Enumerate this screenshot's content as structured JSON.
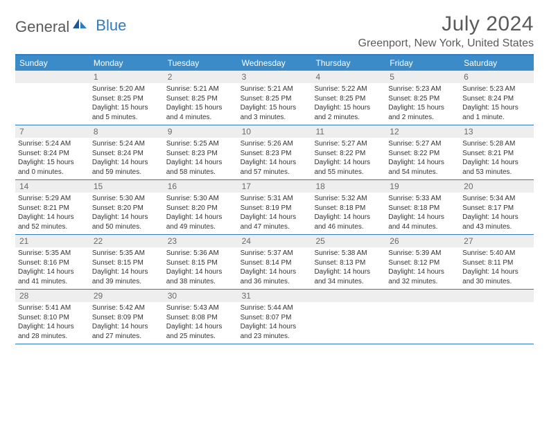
{
  "logo": {
    "part1": "General",
    "part2": "Blue"
  },
  "title": "July 2024",
  "location": "Greenport, New York, United States",
  "weekdays": [
    "Sunday",
    "Monday",
    "Tuesday",
    "Wednesday",
    "Thursday",
    "Friday",
    "Saturday"
  ],
  "colors": {
    "header_bar": "#3b8bc9",
    "border": "#2f7bbf",
    "daynum_bg": "#eeeeee",
    "text": "#333333",
    "muted": "#5a5a5a"
  },
  "weeks": [
    [
      {
        "num": "",
        "lines": []
      },
      {
        "num": "1",
        "lines": [
          "Sunrise: 5:20 AM",
          "Sunset: 8:25 PM",
          "Daylight: 15 hours",
          "and 5 minutes."
        ]
      },
      {
        "num": "2",
        "lines": [
          "Sunrise: 5:21 AM",
          "Sunset: 8:25 PM",
          "Daylight: 15 hours",
          "and 4 minutes."
        ]
      },
      {
        "num": "3",
        "lines": [
          "Sunrise: 5:21 AM",
          "Sunset: 8:25 PM",
          "Daylight: 15 hours",
          "and 3 minutes."
        ]
      },
      {
        "num": "4",
        "lines": [
          "Sunrise: 5:22 AM",
          "Sunset: 8:25 PM",
          "Daylight: 15 hours",
          "and 2 minutes."
        ]
      },
      {
        "num": "5",
        "lines": [
          "Sunrise: 5:23 AM",
          "Sunset: 8:25 PM",
          "Daylight: 15 hours",
          "and 2 minutes."
        ]
      },
      {
        "num": "6",
        "lines": [
          "Sunrise: 5:23 AM",
          "Sunset: 8:24 PM",
          "Daylight: 15 hours",
          "and 1 minute."
        ]
      }
    ],
    [
      {
        "num": "7",
        "lines": [
          "Sunrise: 5:24 AM",
          "Sunset: 8:24 PM",
          "Daylight: 15 hours",
          "and 0 minutes."
        ]
      },
      {
        "num": "8",
        "lines": [
          "Sunrise: 5:24 AM",
          "Sunset: 8:24 PM",
          "Daylight: 14 hours",
          "and 59 minutes."
        ]
      },
      {
        "num": "9",
        "lines": [
          "Sunrise: 5:25 AM",
          "Sunset: 8:23 PM",
          "Daylight: 14 hours",
          "and 58 minutes."
        ]
      },
      {
        "num": "10",
        "lines": [
          "Sunrise: 5:26 AM",
          "Sunset: 8:23 PM",
          "Daylight: 14 hours",
          "and 57 minutes."
        ]
      },
      {
        "num": "11",
        "lines": [
          "Sunrise: 5:27 AM",
          "Sunset: 8:22 PM",
          "Daylight: 14 hours",
          "and 55 minutes."
        ]
      },
      {
        "num": "12",
        "lines": [
          "Sunrise: 5:27 AM",
          "Sunset: 8:22 PM",
          "Daylight: 14 hours",
          "and 54 minutes."
        ]
      },
      {
        "num": "13",
        "lines": [
          "Sunrise: 5:28 AM",
          "Sunset: 8:21 PM",
          "Daylight: 14 hours",
          "and 53 minutes."
        ]
      }
    ],
    [
      {
        "num": "14",
        "lines": [
          "Sunrise: 5:29 AM",
          "Sunset: 8:21 PM",
          "Daylight: 14 hours",
          "and 52 minutes."
        ]
      },
      {
        "num": "15",
        "lines": [
          "Sunrise: 5:30 AM",
          "Sunset: 8:20 PM",
          "Daylight: 14 hours",
          "and 50 minutes."
        ]
      },
      {
        "num": "16",
        "lines": [
          "Sunrise: 5:30 AM",
          "Sunset: 8:20 PM",
          "Daylight: 14 hours",
          "and 49 minutes."
        ]
      },
      {
        "num": "17",
        "lines": [
          "Sunrise: 5:31 AM",
          "Sunset: 8:19 PM",
          "Daylight: 14 hours",
          "and 47 minutes."
        ]
      },
      {
        "num": "18",
        "lines": [
          "Sunrise: 5:32 AM",
          "Sunset: 8:18 PM",
          "Daylight: 14 hours",
          "and 46 minutes."
        ]
      },
      {
        "num": "19",
        "lines": [
          "Sunrise: 5:33 AM",
          "Sunset: 8:18 PM",
          "Daylight: 14 hours",
          "and 44 minutes."
        ]
      },
      {
        "num": "20",
        "lines": [
          "Sunrise: 5:34 AM",
          "Sunset: 8:17 PM",
          "Daylight: 14 hours",
          "and 43 minutes."
        ]
      }
    ],
    [
      {
        "num": "21",
        "lines": [
          "Sunrise: 5:35 AM",
          "Sunset: 8:16 PM",
          "Daylight: 14 hours",
          "and 41 minutes."
        ]
      },
      {
        "num": "22",
        "lines": [
          "Sunrise: 5:35 AM",
          "Sunset: 8:15 PM",
          "Daylight: 14 hours",
          "and 39 minutes."
        ]
      },
      {
        "num": "23",
        "lines": [
          "Sunrise: 5:36 AM",
          "Sunset: 8:15 PM",
          "Daylight: 14 hours",
          "and 38 minutes."
        ]
      },
      {
        "num": "24",
        "lines": [
          "Sunrise: 5:37 AM",
          "Sunset: 8:14 PM",
          "Daylight: 14 hours",
          "and 36 minutes."
        ]
      },
      {
        "num": "25",
        "lines": [
          "Sunrise: 5:38 AM",
          "Sunset: 8:13 PM",
          "Daylight: 14 hours",
          "and 34 minutes."
        ]
      },
      {
        "num": "26",
        "lines": [
          "Sunrise: 5:39 AM",
          "Sunset: 8:12 PM",
          "Daylight: 14 hours",
          "and 32 minutes."
        ]
      },
      {
        "num": "27",
        "lines": [
          "Sunrise: 5:40 AM",
          "Sunset: 8:11 PM",
          "Daylight: 14 hours",
          "and 30 minutes."
        ]
      }
    ],
    [
      {
        "num": "28",
        "lines": [
          "Sunrise: 5:41 AM",
          "Sunset: 8:10 PM",
          "Daylight: 14 hours",
          "and 28 minutes."
        ]
      },
      {
        "num": "29",
        "lines": [
          "Sunrise: 5:42 AM",
          "Sunset: 8:09 PM",
          "Daylight: 14 hours",
          "and 27 minutes."
        ]
      },
      {
        "num": "30",
        "lines": [
          "Sunrise: 5:43 AM",
          "Sunset: 8:08 PM",
          "Daylight: 14 hours",
          "and 25 minutes."
        ]
      },
      {
        "num": "31",
        "lines": [
          "Sunrise: 5:44 AM",
          "Sunset: 8:07 PM",
          "Daylight: 14 hours",
          "and 23 minutes."
        ]
      },
      {
        "num": "",
        "lines": []
      },
      {
        "num": "",
        "lines": []
      },
      {
        "num": "",
        "lines": []
      }
    ]
  ]
}
